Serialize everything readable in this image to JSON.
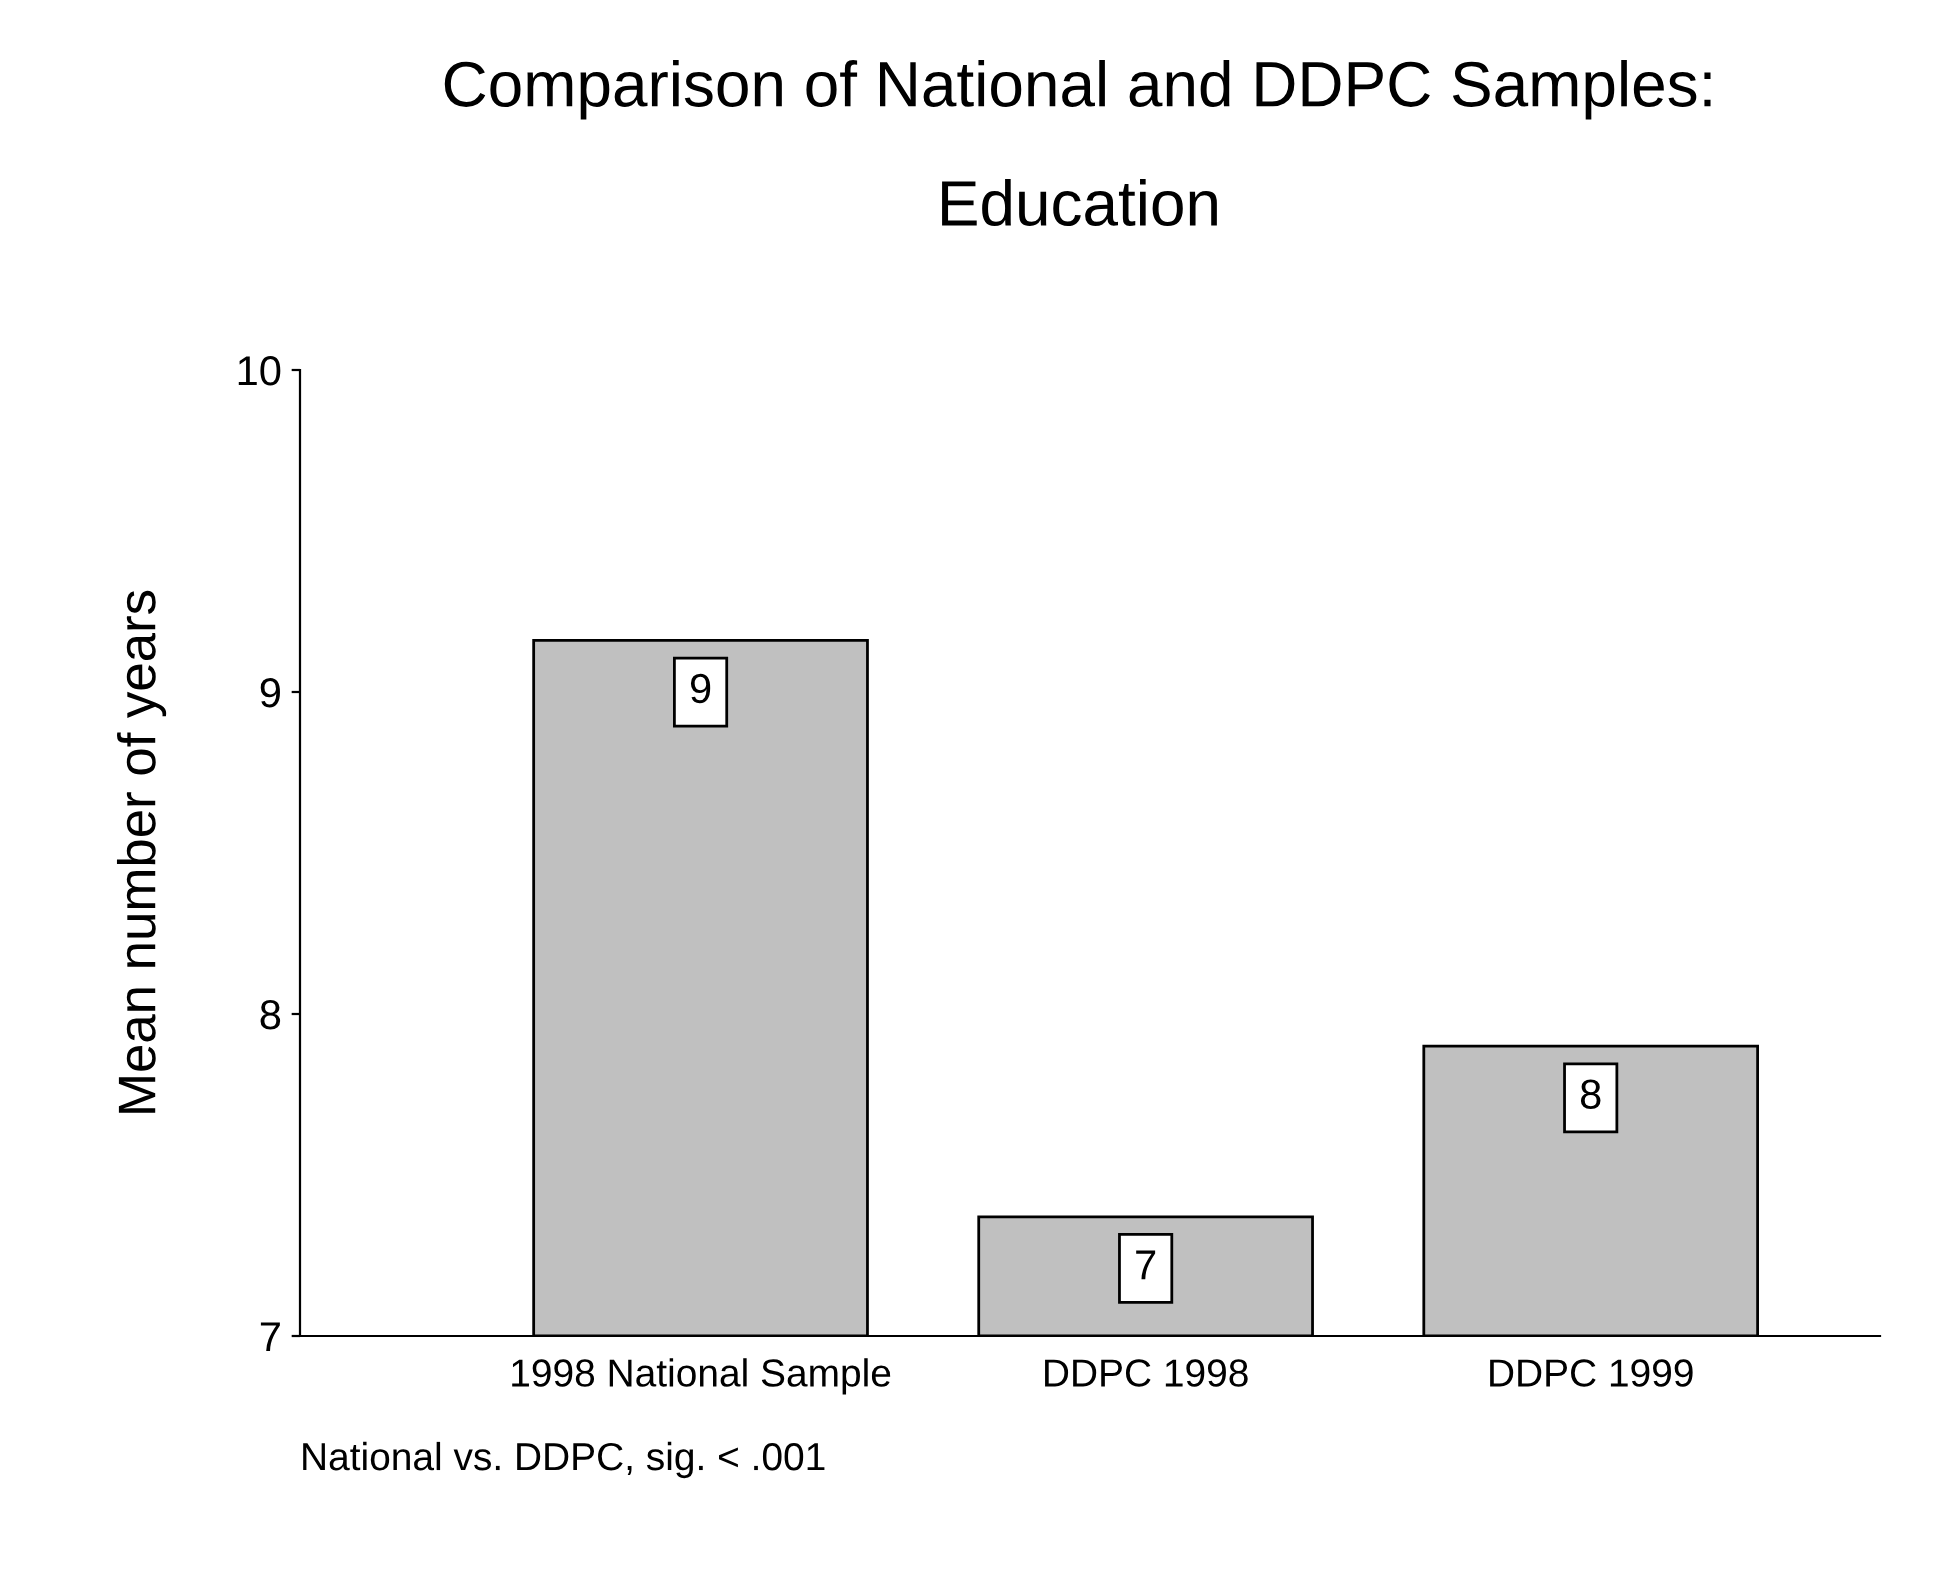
{
  "chart_data": {
    "type": "bar",
    "title": "Comparison of National and DDPC Samples:\n\nEducation",
    "ylabel": "Mean number of years",
    "categories": [
      "1998 National Sample",
      "DDPC 1998",
      "DDPC 1999"
    ],
    "values": [
      9.16,
      7.37,
      7.9
    ],
    "value_labels": [
      "9",
      "7",
      "8"
    ],
    "color": "#c0c0c0",
    "ylim": [
      7,
      10
    ],
    "yticks": [
      7,
      8,
      9,
      10
    ],
    "grid": false,
    "annotations": [
      "National vs. DDPC, sig. < .001"
    ]
  }
}
